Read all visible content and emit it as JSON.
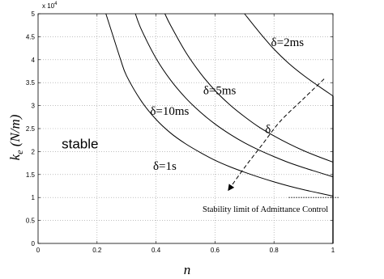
{
  "chart_data": {
    "type": "line",
    "xlabel": "n",
    "ylabel_main": "k",
    "ylabel_sub": "e",
    "ylabel_unit": " (N/m)",
    "multiplier": "x 10",
    "multiplier_exp": "4",
    "xlim": [
      0,
      1
    ],
    "ylim": [
      0,
      50000
    ],
    "grid": true,
    "xticks": [
      0,
      0.2,
      0.4,
      0.6,
      0.8,
      1
    ],
    "xtick_labels": [
      "0",
      "0.2",
      "0.4",
      "0.6",
      "0.8",
      "1"
    ],
    "yticks": [
      0,
      5000,
      10000,
      15000,
      20000,
      25000,
      30000,
      35000,
      40000,
      45000,
      50000
    ],
    "ytick_labels": [
      "0",
      "0.5",
      "1",
      "1.5",
      "2",
      "2.5",
      "3",
      "3.5",
      "4",
      "4.5",
      "5"
    ],
    "series": [
      {
        "name": "δ=1s",
        "x": [
          0.23,
          0.25,
          0.28,
          0.3,
          0.35,
          0.4,
          0.45,
          0.5,
          0.55,
          0.6,
          0.65,
          0.7,
          0.75,
          0.8,
          0.85,
          0.9,
          0.95,
          1.0
        ],
        "y": [
          50000,
          46000,
          40000,
          36500,
          31000,
          27000,
          24000,
          21700,
          19800,
          18100,
          16700,
          15500,
          14400,
          13400,
          12500,
          11700,
          11000,
          10300
        ]
      },
      {
        "name": "δ=10ms",
        "x": [
          0.33,
          0.35,
          0.4,
          0.45,
          0.5,
          0.55,
          0.6,
          0.65,
          0.7,
          0.75,
          0.8,
          0.85,
          0.9,
          0.95,
          1.0
        ],
        "y": [
          50000,
          46600,
          40300,
          35500,
          31700,
          28600,
          26000,
          23800,
          21900,
          20300,
          18900,
          17600,
          16500,
          15500,
          14500
        ]
      },
      {
        "name": "δ=5ms",
        "x": [
          0.43,
          0.45,
          0.5,
          0.55,
          0.6,
          0.65,
          0.7,
          0.75,
          0.8,
          0.85,
          0.9,
          0.95,
          1.0
        ],
        "y": [
          50000,
          47400,
          41700,
          37100,
          33300,
          30200,
          27600,
          25300,
          23400,
          21700,
          20200,
          18900,
          17700
        ]
      },
      {
        "name": "δ=2ms",
        "x": [
          0.7,
          0.75,
          0.8,
          0.85,
          0.9,
          0.95,
          1.0
        ],
        "y": [
          50000,
          46000,
          42300,
          39200,
          36600,
          34300,
          32100
        ]
      }
    ],
    "labels": [
      {
        "text": "δ=2ms",
        "x": 0.79,
        "y": 43000
      },
      {
        "text": "δ=5ms",
        "x": 0.56,
        "y": 32500
      },
      {
        "text": "δ=10ms",
        "x": 0.38,
        "y": 28000
      },
      {
        "text": "δ=1s",
        "x": 0.39,
        "y": 16000
      }
    ],
    "region_label": {
      "text": "stable",
      "x": 0.08,
      "y": 20700
    },
    "delta_arrow": {
      "label": "δ",
      "label_x": 0.77,
      "label_y": 24000,
      "x": [
        0.97,
        0.9,
        0.82,
        0.76,
        0.7,
        0.65
      ],
      "y": [
        35800,
        31500,
        26500,
        21500,
        16500,
        12000
      ]
    },
    "stability_limit": {
      "label": "Stability limit of Admittance Control",
      "y": 10000,
      "x_start": 0.85,
      "x_end": 1.02
    },
    "vertical_line": {
      "x": 1.0,
      "y_start": 0,
      "y_end": 32100
    }
  }
}
